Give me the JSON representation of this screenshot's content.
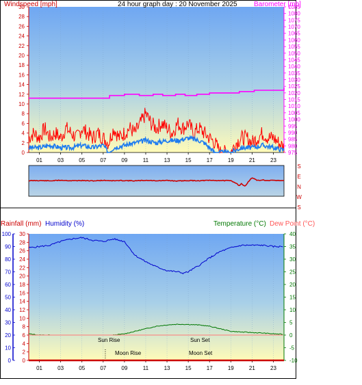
{
  "page": {
    "title": "24 hour graph day : 20 November 2025"
  },
  "colors": {
    "wind_axis": "#cc0000",
    "baro_axis": "#ff00ff",
    "wind_speed": "#ff0000",
    "wind_avg": "#1e7cf0",
    "humidity": "#0000cc",
    "temperature": "#007700",
    "dewpoint": "#ff7777",
    "rain": "#cc0000",
    "dir": "#cc0000",
    "sky_top": "#6fa7f2",
    "sky_bottom": "#fffbb8"
  },
  "chart_data": [
    {
      "type": "line",
      "id": "wind_baro",
      "title": "24 hour graph day : 20 November 2025",
      "left_axis": {
        "label": "Windspeed [mph]",
        "ylim": [
          0,
          30
        ],
        "ticks": [
          "0",
          "2",
          "4",
          "6",
          "8",
          "10",
          "12",
          "14",
          "16",
          "18",
          "20",
          "22",
          "24",
          "26",
          "28",
          "30"
        ]
      },
      "right_axis": {
        "label": "Barometer [mb]",
        "ylim": [
          975,
          1085
        ],
        "ticks": [
          "975",
          "980",
          "985",
          "990",
          "995",
          "1000",
          "1005",
          "1010",
          "1015",
          "1020",
          "1025",
          "1030",
          "1035",
          "1040",
          "1045",
          "1050",
          "1055",
          "1060",
          "1065",
          "1070",
          "1075",
          "1080",
          "1085"
        ]
      },
      "x_ticks": [
        "01",
        "03",
        "05",
        "07",
        "09",
        "11",
        "13",
        "15",
        "17",
        "19",
        "21",
        "23"
      ],
      "series": [
        {
          "name": "Barometer",
          "axis": "right",
          "x": [
            0,
            7.2,
            7.6,
            8.6,
            9.0,
            10.0,
            10.4,
            11.3,
            11.7,
            12.2,
            12.6,
            13.5,
            13.8,
            14.3,
            14.7,
            15.4,
            15.8,
            16.6,
            17.0,
            19.4,
            19.8,
            20.8,
            21.2,
            23.9,
            24.0
          ],
          "y": [
            1016,
            1016,
            1018,
            1018,
            1019,
            1019,
            1018,
            1018,
            1019,
            1019,
            1018,
            1018,
            1019,
            1019,
            1018,
            1018,
            1019,
            1019,
            1020,
            1020,
            1021,
            1021,
            1022,
            1022,
            1024
          ]
        },
        {
          "name": "Wind Gust",
          "axis": "left",
          "x": [
            0,
            0.5,
            1,
            1.5,
            2,
            2.5,
            3,
            3.5,
            4,
            4.5,
            5,
            5.5,
            6,
            6.5,
            7,
            7.5,
            8,
            8.5,
            9,
            9.5,
            10,
            10.5,
            11,
            11.5,
            12,
            12.5,
            13,
            13.5,
            14,
            14.5,
            15,
            15.5,
            16,
            16.5,
            17,
            17.5,
            18,
            18.5,
            19,
            19.5,
            20,
            20.5,
            21,
            21.5,
            22,
            22.5,
            23,
            23.5,
            24
          ],
          "y": [
            3,
            4,
            3,
            5,
            3,
            4,
            3,
            5,
            4,
            3,
            5,
            4,
            3,
            4,
            3,
            2,
            5,
            3,
            4,
            5,
            4,
            6,
            8,
            6,
            5,
            6,
            5,
            4,
            6,
            5,
            6,
            4,
            5,
            4,
            3,
            2,
            0,
            0,
            0,
            2,
            3,
            3,
            2,
            3,
            4,
            3,
            3,
            2,
            1
          ]
        },
        {
          "name": "Wind Average",
          "axis": "left",
          "x": [
            0,
            1,
            2,
            3,
            4,
            5,
            6,
            7,
            7.5,
            8,
            9,
            10,
            11,
            12,
            13,
            14,
            15,
            16,
            16.5,
            17,
            17.5,
            18,
            19,
            20,
            21,
            22,
            23,
            24
          ],
          "y": [
            1,
            1,
            1.5,
            1,
            1,
            1.5,
            1,
            1.5,
            0,
            1,
            1.5,
            2,
            2.5,
            2,
            2.5,
            2.5,
            3,
            2.5,
            2,
            1,
            0,
            0,
            0,
            1,
            1,
            1.5,
            1,
            0.5
          ]
        }
      ]
    },
    {
      "type": "line",
      "id": "wind_direction",
      "right_labels": [
        "S",
        "E",
        "N",
        "W",
        "S"
      ],
      "x": [
        0,
        1,
        2,
        3,
        4,
        5,
        6,
        7,
        8,
        9,
        10,
        11,
        12,
        13,
        14,
        15,
        16,
        17,
        18,
        19,
        19.5,
        19.8,
        20,
        20.3,
        20.6,
        21,
        21.5,
        22,
        22.5,
        23,
        23.5,
        24
      ],
      "y": [
        178,
        176,
        180,
        172,
        178,
        176,
        180,
        174,
        178,
        176,
        180,
        174,
        178,
        176,
        182,
        176,
        178,
        174,
        176,
        178,
        206,
        236,
        212,
        246,
        198,
        142,
        176,
        170,
        178,
        174,
        176,
        178
      ]
    },
    {
      "type": "line",
      "id": "temp_hum_rain",
      "left_axis_rain": {
        "label": "Rainfall (mm)",
        "ylim": [
          0,
          30
        ],
        "ticks": [
          "0",
          "2",
          "4",
          "6",
          "8",
          "10",
          "12",
          "14",
          "16",
          "18",
          "20",
          "22",
          "24",
          "26",
          "28",
          "30"
        ]
      },
      "left_axis_humidity": {
        "label": "Humidity (%)",
        "ylim": [
          0,
          100
        ],
        "ticks": [
          "0",
          "10",
          "20",
          "30",
          "40",
          "50",
          "60",
          "70",
          "80",
          "90",
          "100"
        ]
      },
      "right_axis": {
        "label_temp": "Temperature (°C)",
        "label_dew": "Dew Point (°C)",
        "ylim": [
          -10,
          40
        ],
        "ticks": [
          "-10",
          "-5",
          "0",
          "5",
          "10",
          "15",
          "20",
          "25",
          "30",
          "35",
          "40"
        ]
      },
      "x_ticks": [
        "01",
        "03",
        "05",
        "07",
        "09",
        "11",
        "13",
        "15",
        "17",
        "19",
        "21",
        "23"
      ],
      "annotations": {
        "sun_rise": "Sun Rise",
        "sun_set": "Sun Set",
        "moon_rise": "Moon Rise",
        "moon_set": "Moon Set"
      },
      "annotation_hours": {
        "sun_rise": 7.2,
        "sun_set": 16.5,
        "moon_rise": 7.2,
        "moon_set": 15.6
      },
      "series": [
        {
          "name": "Humidity",
          "axis": "humidity",
          "x": [
            0,
            1,
            2,
            3,
            4,
            5,
            6,
            7,
            8,
            9,
            10,
            11,
            12,
            13,
            14,
            14.5,
            15,
            16,
            17,
            18,
            19,
            20,
            21,
            22,
            23,
            24
          ],
          "y": [
            89,
            90,
            91,
            94,
            96,
            97,
            95,
            94,
            96,
            94,
            83,
            78,
            74,
            71,
            70,
            69,
            70,
            75,
            81,
            86,
            89,
            91,
            91,
            91,
            90,
            90
          ]
        },
        {
          "name": "Temperature",
          "axis": "right",
          "x": [
            0,
            1,
            2,
            3,
            4,
            5,
            6,
            7,
            8,
            9,
            10,
            11,
            12,
            13,
            14,
            15,
            16,
            17,
            18,
            19,
            20,
            21,
            22,
            23,
            24
          ],
          "y": [
            0.5,
            0,
            0,
            -0.5,
            -0.5,
            -0.5,
            -0.5,
            -0.5,
            0,
            0.5,
            1.5,
            2.5,
            3.5,
            4,
            4.3,
            4.2,
            4,
            3.5,
            2.5,
            1.5,
            1.2,
            1,
            0.8,
            0.5,
            0.3
          ]
        },
        {
          "name": "Dew Point",
          "axis": "right",
          "x": [
            0,
            1,
            2,
            3,
            4,
            5,
            6,
            7,
            8,
            9,
            10,
            11,
            12,
            13,
            14,
            15,
            16,
            17,
            18,
            19,
            20,
            21,
            22,
            23,
            24
          ],
          "y": [
            -2,
            -2,
            -2.5,
            -2.5,
            -2.5,
            -2.5,
            -2,
            -2,
            -1.5,
            -1,
            -1,
            -0.5,
            -0.5,
            -0.5,
            -1,
            -0.5,
            -0.8,
            -0.8,
            -1,
            -1,
            -1.2,
            -1.3,
            -1.3,
            -1.5,
            -1.5
          ]
        },
        {
          "name": "Rainfall",
          "axis": "rain",
          "x": [
            0,
            24
          ],
          "y": [
            0,
            0
          ]
        }
      ]
    }
  ]
}
